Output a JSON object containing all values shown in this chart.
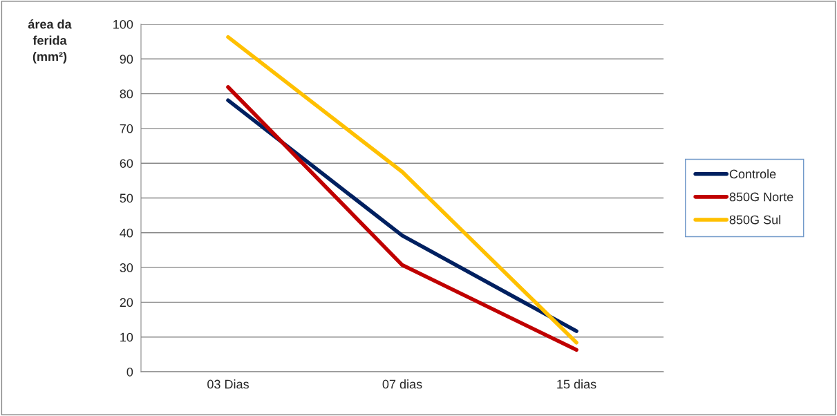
{
  "chart_data": {
    "type": "line",
    "ylabel": "área da\nferida\n(mm²)",
    "categories": [
      "03 Dias",
      "07 dias",
      "15 dias"
    ],
    "series": [
      {
        "name": "Controle",
        "color": "#002060",
        "values": [
          78.1,
          39.2,
          11.7
        ]
      },
      {
        "name": "850G Norte",
        "color": "#c00000",
        "values": [
          81.9,
          30.7,
          6.3
        ]
      },
      {
        "name": "850G Sul",
        "color": "#ffc000",
        "values": [
          96.3,
          57.5,
          8.4
        ]
      }
    ],
    "ylim": [
      0,
      100
    ],
    "yticks": [
      0,
      10,
      20,
      30,
      40,
      50,
      60,
      70,
      80,
      90,
      100
    ],
    "grid": "y",
    "legend": "right",
    "marker": "none",
    "line_style": "solid"
  }
}
